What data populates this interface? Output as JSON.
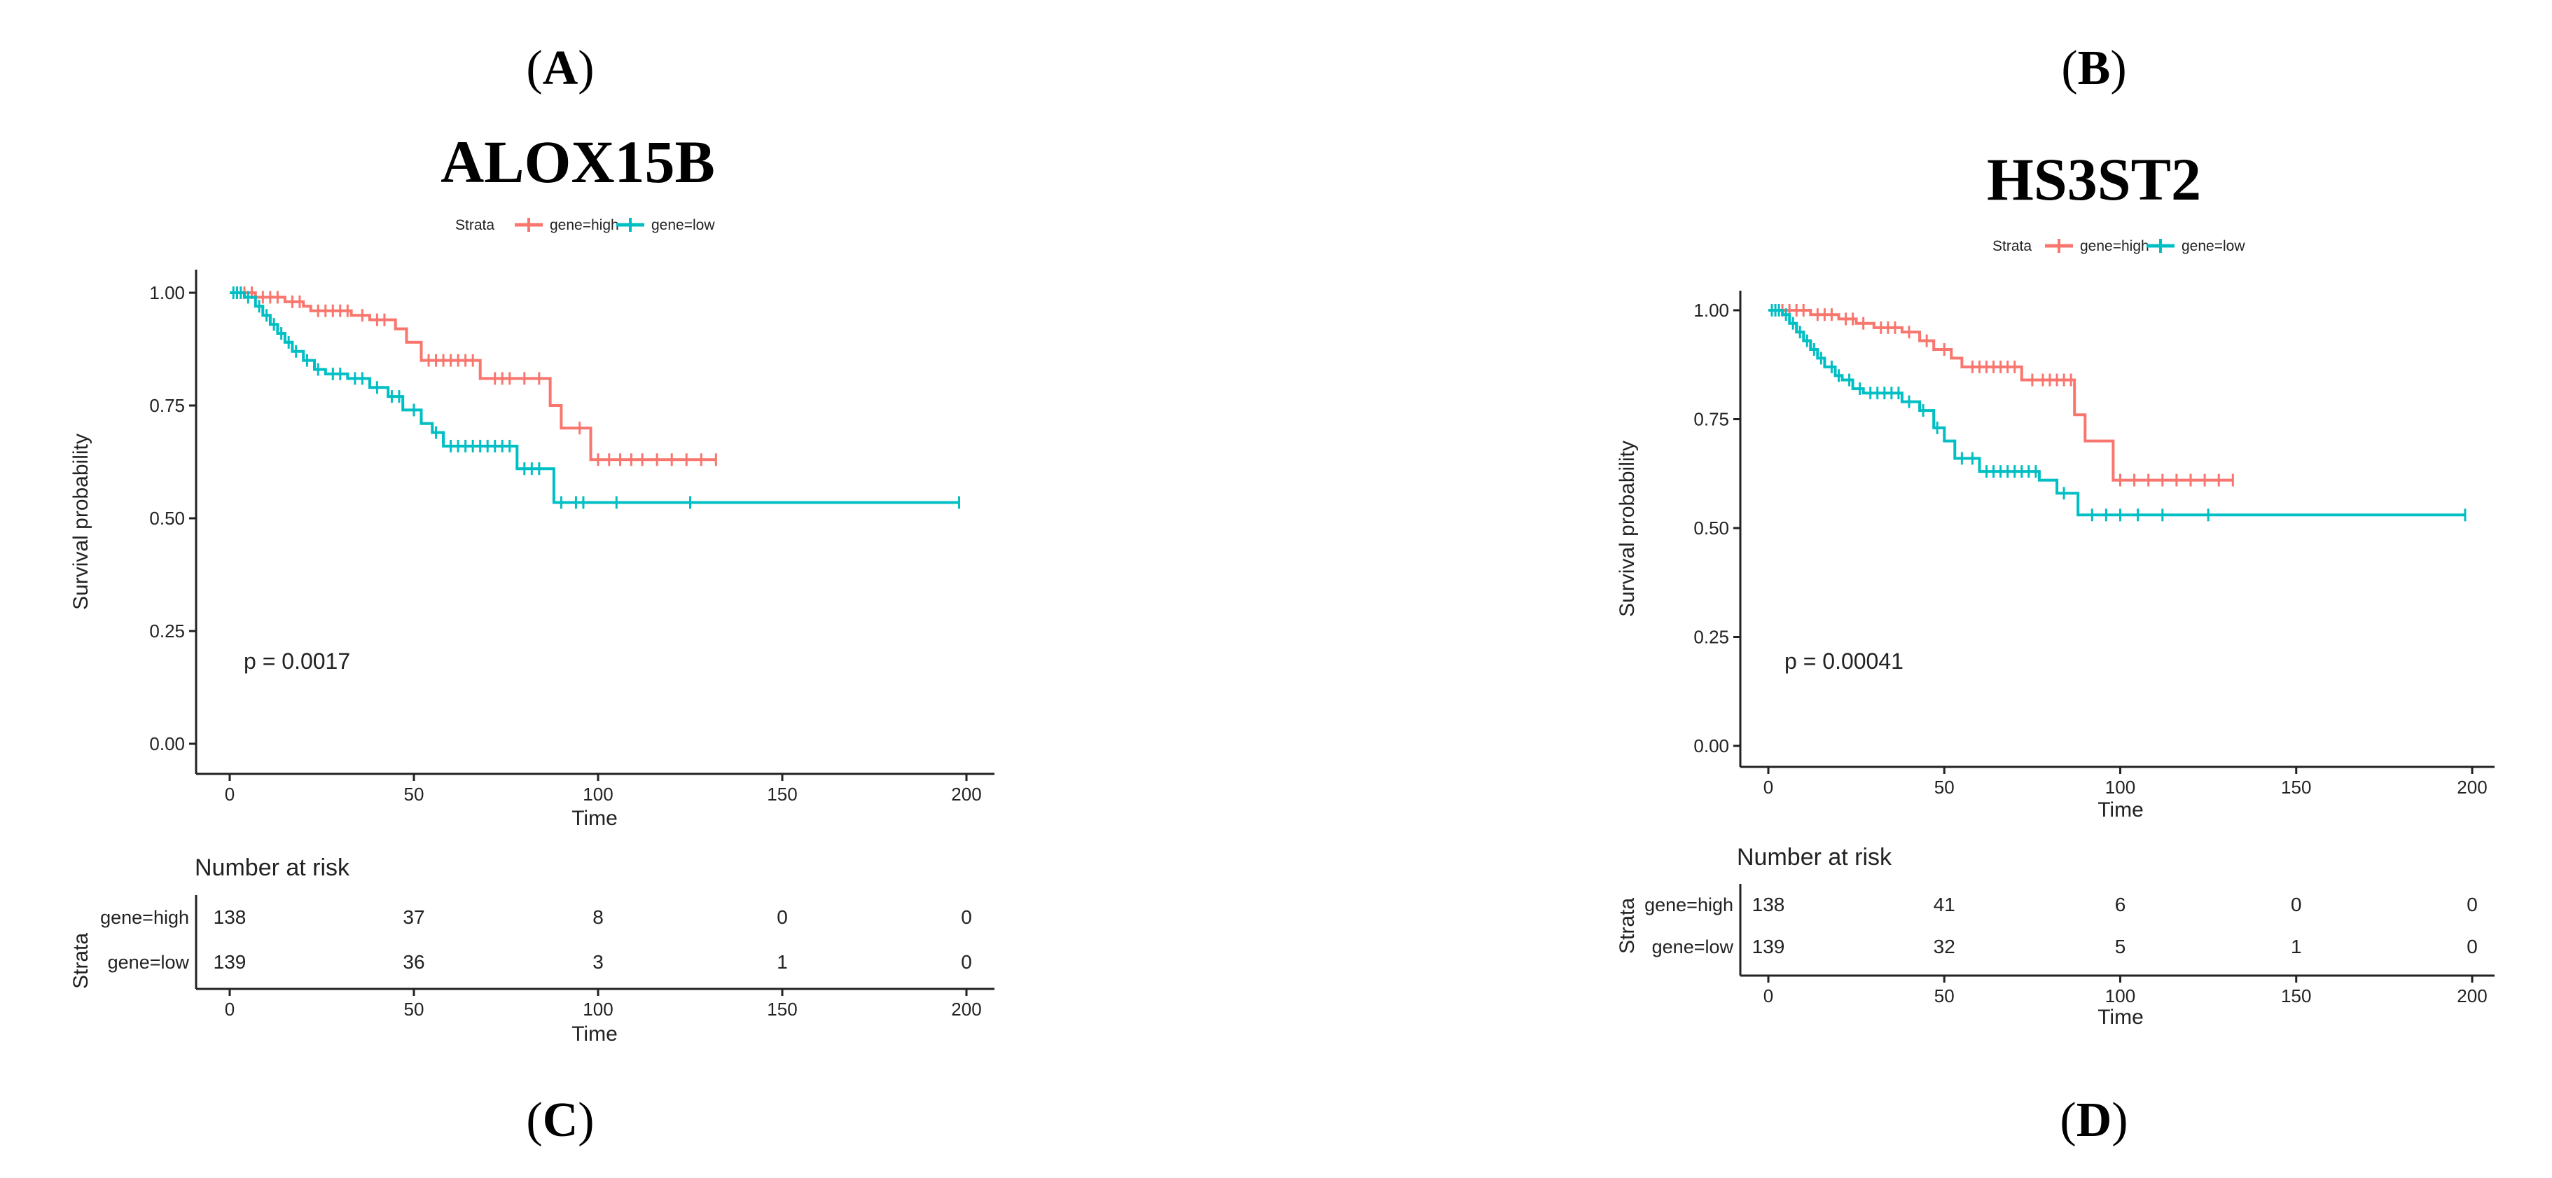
{
  "panel_labels": {
    "a": "A",
    "b": "B",
    "c": "C",
    "d": "D"
  },
  "colors": {
    "high": "#F8766D",
    "low": "#00BFC4",
    "axis": "#222222"
  },
  "chart_data": [
    {
      "type": "line",
      "title": "ALOX15B",
      "xlabel": "Time",
      "ylabel": "Survival probability",
      "legend": {
        "title": "Strata",
        "position": "top",
        "labels": [
          "gene=high",
          "gene=low"
        ]
      },
      "xlim": [
        0,
        200
      ],
      "ylim": [
        0,
        1
      ],
      "x_ticks": [
        "0",
        "50",
        "100",
        "150",
        "200"
      ],
      "y_ticks": [
        "0.00",
        "0.25",
        "0.50",
        "0.75",
        "1.00"
      ],
      "p_value": "p = 0.0017",
      "series": [
        {
          "name": "gene=high",
          "steps": [
            [
              0,
              1.0
            ],
            [
              7,
              0.99
            ],
            [
              15,
              0.98
            ],
            [
              20,
              0.97
            ],
            [
              22,
              0.96
            ],
            [
              33,
              0.95
            ],
            [
              38,
              0.94
            ],
            [
              45,
              0.92
            ],
            [
              48,
              0.89
            ],
            [
              52,
              0.85
            ],
            [
              68,
              0.81
            ],
            [
              87,
              0.75
            ],
            [
              90,
              0.7
            ],
            [
              98,
              0.63
            ],
            [
              132,
              0.63
            ]
          ],
          "censors": [
            2,
            4,
            6,
            9,
            11,
            13,
            17,
            19,
            24,
            26,
            28,
            30,
            32,
            36,
            40,
            42,
            54,
            56,
            58,
            60,
            62,
            64,
            66,
            72,
            74,
            76,
            80,
            84,
            95,
            100,
            103,
            106,
            109,
            112,
            116,
            120,
            124,
            128,
            132
          ]
        },
        {
          "name": "gene=low",
          "steps": [
            [
              0,
              1.0
            ],
            [
              4,
              0.99
            ],
            [
              7,
              0.97
            ],
            [
              9,
              0.95
            ],
            [
              11,
              0.93
            ],
            [
              13,
              0.91
            ],
            [
              15,
              0.89
            ],
            [
              17,
              0.87
            ],
            [
              20,
              0.85
            ],
            [
              23,
              0.83
            ],
            [
              26,
              0.82
            ],
            [
              32,
              0.81
            ],
            [
              38,
              0.79
            ],
            [
              43,
              0.77
            ],
            [
              47,
              0.74
            ],
            [
              52,
              0.71
            ],
            [
              55,
              0.69
            ],
            [
              58,
              0.66
            ],
            [
              78,
              0.61
            ],
            [
              88,
              0.535
            ],
            [
              198,
              0.535
            ]
          ],
          "censors": [
            1,
            2,
            3,
            5,
            8,
            10,
            12,
            14,
            16,
            18,
            21,
            24,
            28,
            30,
            34,
            36,
            40,
            44,
            46,
            50,
            56,
            60,
            62,
            64,
            66,
            68,
            70,
            72,
            74,
            76,
            80,
            82,
            84,
            90,
            94,
            96,
            105,
            125,
            198
          ]
        }
      ],
      "risk_table": {
        "title": "Number at risk",
        "strata_label": "Strata",
        "time_label": "Time",
        "rows": [
          {
            "name": "gene=high",
            "values": [
              "138",
              "37",
              "8",
              "0",
              "0"
            ]
          },
          {
            "name": "gene=low",
            "values": [
              "139",
              "36",
              "3",
              "1",
              "0"
            ]
          }
        ]
      }
    },
    {
      "type": "line",
      "title": "HS3ST2",
      "xlabel": "Time",
      "ylabel": "Survival probability",
      "legend": {
        "title": "Strata",
        "position": "top",
        "labels": [
          "gene=high",
          "gene=low"
        ]
      },
      "xlim": [
        0,
        200
      ],
      "ylim": [
        0,
        1
      ],
      "x_ticks": [
        "0",
        "50",
        "100",
        "150",
        "200"
      ],
      "y_ticks": [
        "0.00",
        "0.25",
        "0.50",
        "0.75",
        "1.00"
      ],
      "p_value": "p = 0.00041",
      "series": [
        {
          "name": "gene=high",
          "steps": [
            [
              0,
              1.0
            ],
            [
              12,
              0.99
            ],
            [
              20,
              0.98
            ],
            [
              25,
              0.97
            ],
            [
              30,
              0.96
            ],
            [
              38,
              0.95
            ],
            [
              43,
              0.93
            ],
            [
              47,
              0.91
            ],
            [
              52,
              0.89
            ],
            [
              55,
              0.87
            ],
            [
              72,
              0.84
            ],
            [
              87,
              0.76
            ],
            [
              90,
              0.7
            ],
            [
              98,
              0.61
            ],
            [
              132,
              0.61
            ]
          ],
          "censors": [
            2,
            4,
            6,
            8,
            10,
            14,
            16,
            18,
            22,
            24,
            27,
            32,
            34,
            36,
            40,
            45,
            50,
            58,
            60,
            62,
            64,
            66,
            68,
            70,
            75,
            78,
            80,
            82,
            84,
            86,
            100,
            104,
            108,
            112,
            116,
            120,
            124,
            128,
            132
          ]
        },
        {
          "name": "gene=low",
          "steps": [
            [
              0,
              1.0
            ],
            [
              4,
              0.99
            ],
            [
              6,
              0.97
            ],
            [
              8,
              0.95
            ],
            [
              10,
              0.93
            ],
            [
              12,
              0.91
            ],
            [
              14,
              0.89
            ],
            [
              16,
              0.87
            ],
            [
              19,
              0.85
            ],
            [
              21,
              0.84
            ],
            [
              24,
              0.82
            ],
            [
              27,
              0.81
            ],
            [
              38,
              0.79
            ],
            [
              43,
              0.77
            ],
            [
              47,
              0.73
            ],
            [
              50,
              0.7
            ],
            [
              53,
              0.66
            ],
            [
              60,
              0.63
            ],
            [
              77,
              0.61
            ],
            [
              82,
              0.58
            ],
            [
              88,
              0.53
            ],
            [
              198,
              0.53
            ]
          ],
          "censors": [
            1,
            2,
            3,
            5,
            7,
            9,
            11,
            13,
            15,
            18,
            20,
            23,
            26,
            29,
            31,
            33,
            35,
            37,
            40,
            44,
            48,
            55,
            58,
            62,
            64,
            66,
            68,
            70,
            72,
            74,
            76,
            84,
            92,
            96,
            100,
            105,
            112,
            125,
            198
          ]
        }
      ],
      "risk_table": {
        "title": "Number at risk",
        "strata_label": "Strata",
        "time_label": "Time",
        "rows": [
          {
            "name": "gene=high",
            "values": [
              "138",
              "41",
              "6",
              "0",
              "0"
            ]
          },
          {
            "name": "gene=low",
            "values": [
              "139",
              "32",
              "5",
              "1",
              "0"
            ]
          }
        ]
      }
    }
  ]
}
